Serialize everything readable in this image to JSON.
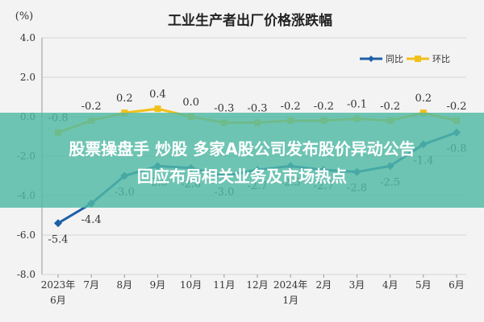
{
  "chart_data": {
    "type": "line",
    "title": "工业生产者出厂价格涨跌幅",
    "ylabel": "(%)",
    "xlabel": "",
    "ylim": [
      -8.0,
      4.0
    ],
    "yticks": [
      "4.0",
      "2.0",
      "0.0",
      "-2.0",
      "-4.0",
      "-6.0",
      "-8.0"
    ],
    "categories": [
      "2023年6月",
      "7月",
      "8月",
      "9月",
      "10月",
      "11月",
      "12月",
      "2024年1月",
      "2月",
      "3月",
      "4月",
      "5月",
      "6月"
    ],
    "category_labels": [
      [
        "2023年",
        "6月"
      ],
      [
        "7月",
        ""
      ],
      [
        "8月",
        ""
      ],
      [
        "9月",
        ""
      ],
      [
        "10月",
        ""
      ],
      [
        "11月",
        ""
      ],
      [
        "12月",
        ""
      ],
      [
        "2024年",
        "1月"
      ],
      [
        "2月",
        ""
      ],
      [
        "3月",
        ""
      ],
      [
        "4月",
        ""
      ],
      [
        "5月",
        ""
      ],
      [
        "6月",
        ""
      ]
    ],
    "series": [
      {
        "name": "同比",
        "color": "#1f5fa8",
        "values": [
          -5.4,
          -4.4,
          -3.0,
          -2.5,
          -2.6,
          -3.0,
          -2.7,
          -2.5,
          -2.7,
          -2.8,
          -2.5,
          -1.4,
          -0.8
        ],
        "labels": [
          "-5.4",
          "-4.4",
          "-3.0",
          "-2.5",
          "-2.6",
          "-3.0",
          "-2.7",
          "-2.5",
          "-2.7",
          "-2.8",
          "-2.5",
          "-1.4",
          "-0.8"
        ]
      },
      {
        "name": "环比",
        "color": "#f2c01b",
        "values": [
          -0.8,
          -0.2,
          0.2,
          0.4,
          0.0,
          -0.3,
          -0.3,
          -0.2,
          -0.2,
          -0.1,
          -0.2,
          0.2,
          -0.2
        ],
        "labels": [
          "-0.8",
          "-0.2",
          "0.2",
          "0.4",
          "0.0",
          "-0.3",
          "-0.3",
          "-0.2",
          "-0.2",
          "-0.1",
          "-0.2",
          "0.2",
          "-0.2"
        ]
      }
    ],
    "grid": true,
    "legend": "top-right"
  },
  "overlay": {
    "line1": "股票操盘手 炒股 多家A股公司发布股价异动公告",
    "line2": "回应布局相关业务及市场热点",
    "color": "#50b9a5"
  }
}
